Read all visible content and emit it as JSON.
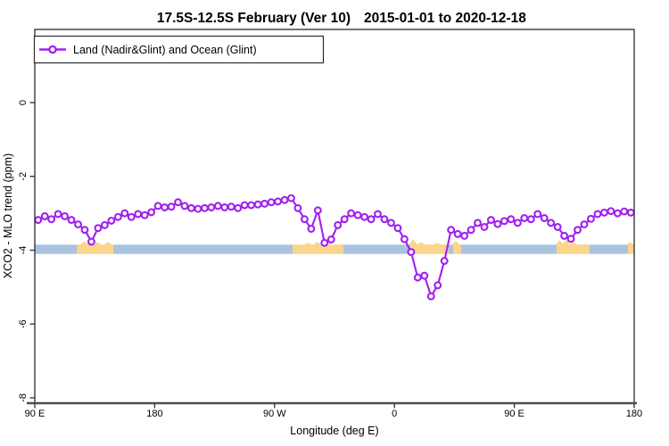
{
  "chart": {
    "title": {
      "range": "17.5S-12.5S February (Ver 10)",
      "dates": "2015-01-01 to 2020-12-18"
    },
    "legend": {
      "label": "Land (Nadir&Glint) and Ocean (Glint)"
    },
    "x_axis": {
      "title": "Longitude (deg E)"
    },
    "y_axis": {
      "title": "XCO2 - MLO trend (ppm)"
    }
  },
  "chart_data": {
    "type": "line",
    "title": "17.5S-12.5S February (Ver 10)  2015-01-01 to 2020-12-18",
    "xlabel": "Longitude (deg E)",
    "ylabel": "XCO2 - MLO trend (ppm)",
    "x_axis": {
      "description": "longitude axis starting at 90E and wrapping eastward for 450 degrees",
      "tick_positions_deg_from_start": [
        0,
        90,
        180,
        270,
        360,
        450
      ],
      "tick_labels": [
        "90 E",
        "180",
        "90 W",
        "0",
        "90 E",
        "180"
      ],
      "range_deg_from_start": [
        0,
        450
      ]
    },
    "y_axis": {
      "tick_values": [
        0,
        -2,
        -4,
        -6,
        -8
      ],
      "tick_labels": [
        "0",
        "-2",
        "-4",
        "-6",
        "-8"
      ],
      "ylim": [
        -8,
        0.6
      ]
    },
    "legend_position": "top-left",
    "grid": false,
    "series": [
      {
        "name": "Land (Nadir&Glint) and Ocean (Glint)",
        "color": "#A020F0",
        "marker": "open-circle",
        "x_deg_from_start": [
          2.5,
          7.5,
          12.5,
          17.5,
          22.5,
          27.5,
          32.5,
          37.5,
          42.5,
          47.5,
          52.5,
          57.5,
          62.5,
          67.5,
          72.5,
          77.5,
          82.5,
          87.5,
          92.5,
          97.5,
          102.5,
          107.5,
          112.5,
          117.5,
          122.5,
          127.5,
          132.5,
          137.5,
          142.5,
          147.5,
          152.5,
          157.5,
          162.5,
          167.5,
          172.5,
          177.5,
          182.5,
          187.5,
          192.5,
          197.5,
          202.5,
          207.5,
          212.5,
          217.5,
          222.5,
          227.5,
          232.5,
          237.5,
          242.5,
          247.5,
          252.5,
          257.5,
          262.5,
          267.5,
          272.5,
          277.5,
          282.5,
          287.5,
          292.5,
          297.5,
          302.5,
          307.5,
          312.5,
          317.5,
          322.5,
          327.5,
          332.5,
          337.5,
          342.5,
          347.5,
          352.5,
          357.5,
          362.5,
          367.5,
          372.5,
          377.5,
          382.5,
          387.5,
          392.5,
          397.5,
          402.5,
          407.5,
          412.5,
          417.5,
          422.5,
          427.5,
          432.5,
          437.5,
          442.5,
          447.5
        ],
        "values": [
          -3.18,
          -3.08,
          -3.16,
          -3.02,
          -3.08,
          -3.18,
          -3.3,
          -3.45,
          -3.77,
          -3.4,
          -3.32,
          -3.2,
          -3.1,
          -3.0,
          -3.1,
          -3.02,
          -3.05,
          -2.97,
          -2.8,
          -2.84,
          -2.82,
          -2.7,
          -2.8,
          -2.86,
          -2.88,
          -2.86,
          -2.84,
          -2.8,
          -2.84,
          -2.82,
          -2.86,
          -2.78,
          -2.78,
          -2.76,
          -2.74,
          -2.7,
          -2.68,
          -2.64,
          -2.59,
          -2.86,
          -3.16,
          -3.42,
          -2.92,
          -3.8,
          -3.71,
          -3.32,
          -3.16,
          -3.0,
          -3.05,
          -3.1,
          -3.16,
          -3.02,
          -3.16,
          -3.26,
          -3.4,
          -3.7,
          -4.05,
          -4.74,
          -4.69,
          -5.25,
          -4.95,
          -4.29,
          -3.45,
          -3.56,
          -3.61,
          -3.45,
          -3.26,
          -3.37,
          -3.18,
          -3.29,
          -3.21,
          -3.16,
          -3.26,
          -3.13,
          -3.16,
          -3.02,
          -3.13,
          -3.26,
          -3.37,
          -3.61,
          -3.69,
          -3.45,
          -3.3,
          -3.15,
          -3.02,
          -2.98,
          -2.94,
          -3.0,
          -2.95,
          -2.98
        ]
      }
    ],
    "map_band": {
      "description": "land/ocean strip drawn across the plot near y = -4 ppm",
      "value_range_ppm": [
        -3.85,
        -4.1
      ],
      "ocean_color": "#A9C2DE",
      "land_color": "#FAD68C",
      "land_patches_deg_from_start": [
        {
          "start": 31.5,
          "end": 59.0,
          "peaks": [
            {
              "deg": 37,
              "h": 4
            },
            {
              "deg": 42,
              "h": 6
            },
            {
              "deg": 47,
              "h": 3
            },
            {
              "deg": 55,
              "h": 3
            }
          ]
        },
        {
          "start": 193.5,
          "end": 231.7,
          "peaks": [
            {
              "deg": 205,
              "h": 2
            },
            {
              "deg": 212,
              "h": 3
            },
            {
              "deg": 220,
              "h": 2
            }
          ]
        },
        {
          "start": 281.9,
          "end": 310.7,
          "peaks": [
            {
              "deg": 284,
              "h": 6
            },
            {
              "deg": 290,
              "h": 3
            },
            {
              "deg": 302,
              "h": 2
            }
          ]
        },
        {
          "start": 314.0,
          "end": 320.0,
          "peaks": [
            {
              "deg": 316,
              "h": 4
            }
          ]
        },
        {
          "start": 391.7,
          "end": 416.5,
          "peaks": [
            {
              "deg": 394,
              "h": 5
            },
            {
              "deg": 399,
              "h": 6
            },
            {
              "deg": 404,
              "h": 3
            }
          ]
        },
        {
          "start": 445.3,
          "end": 450.0,
          "peaks": [
            {
              "deg": 447,
              "h": 3
            }
          ]
        }
      ]
    },
    "colors": {
      "series": "#A020F0",
      "ocean": "#A9C2DE",
      "land": "#FAD68C",
      "axis": "#2b2b2b",
      "baseline": "#4d4d4d"
    }
  }
}
